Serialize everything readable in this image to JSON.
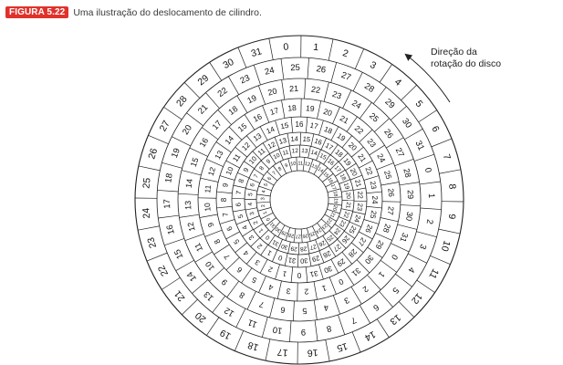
{
  "figure": {
    "badge": "FIGURA 5.22",
    "caption": "Uma ilustração do deslocamento de cilindro.",
    "badge_color": "#e0322b"
  },
  "annotation": {
    "line1": "Direção da",
    "line2": "rotação do disco"
  },
  "disk": {
    "sectors_per_track": 32,
    "tracks": [
      {
        "name": "track-1-outer",
        "angle_of_sector_0_deg": 95,
        "angle_step_deg": -11.25
      },
      {
        "name": "track-2",
        "angle_of_sector_0_deg": 13,
        "angle_step_deg": -11.25
      },
      {
        "name": "track-3",
        "angle_of_sector_0_deg": -31,
        "angle_step_deg": -11.25
      },
      {
        "name": "track-4",
        "angle_of_sector_0_deg": -63,
        "angle_step_deg": -11.25
      },
      {
        "name": "track-5",
        "angle_of_sector_0_deg": -90,
        "angle_step_deg": -11.25
      },
      {
        "name": "track-6",
        "angle_of_sector_0_deg": -108,
        "angle_step_deg": -11.25
      },
      {
        "name": "track-7",
        "angle_of_sector_0_deg": -130,
        "angle_step_deg": -11.25
      },
      {
        "name": "track-8-inner",
        "angle_of_sector_0_deg": -148,
        "angle_step_deg": -11.25
      }
    ]
  }
}
